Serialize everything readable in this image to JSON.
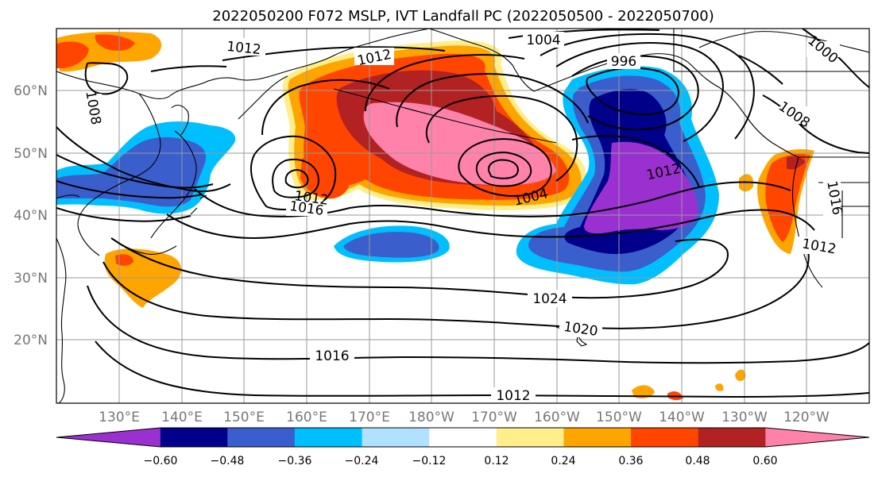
{
  "title": "2022050200 F072 MSLP, IVT Landfall PC (2022050500 - 2022050700)",
  "lat_labels": [
    "60°N",
    "50°N",
    "40°N",
    "30°N",
    "20°N"
  ],
  "lon_labels": [
    "130°E",
    "140°E",
    "150°E",
    "160°E",
    "170°E",
    "180°W",
    "170°W",
    "160°W",
    "150°W",
    "140°W",
    "130°W",
    "120°W"
  ],
  "colorbar": {
    "ticks": [
      "−0.60",
      "−0.48",
      "−0.36",
      "−0.24",
      "−0.12",
      "0.12",
      "0.24",
      "0.36",
      "0.48",
      "0.60"
    ],
    "colors": [
      "#9b30d0",
      "#00008b",
      "#3a5fcd",
      "#00bfff",
      "#b0e2ff",
      "#ffffff",
      "#ffee8a",
      "#ffa500",
      "#ff4500",
      "#b22222",
      "#ff82ab"
    ]
  },
  "isobar_labels": [
    "1012",
    "1004",
    "1000",
    "996",
    "1008",
    "1012",
    "1008",
    "1004",
    "1012",
    "1016",
    "1012",
    "1016",
    "1012",
    "1024",
    "1020",
    "1016",
    "1012"
  ],
  "legend_colors": {
    "purple": "#9b30d0",
    "navy": "#00008b",
    "royalblue": "#3a5fcd",
    "deepskyblue": "#00bfff",
    "lightblue": "#b0e2ff",
    "gold": "#ffee8a",
    "orange": "#ffa500",
    "orangered": "#ff4500",
    "firebrick": "#b22222",
    "pink": "#ff82ab"
  }
}
